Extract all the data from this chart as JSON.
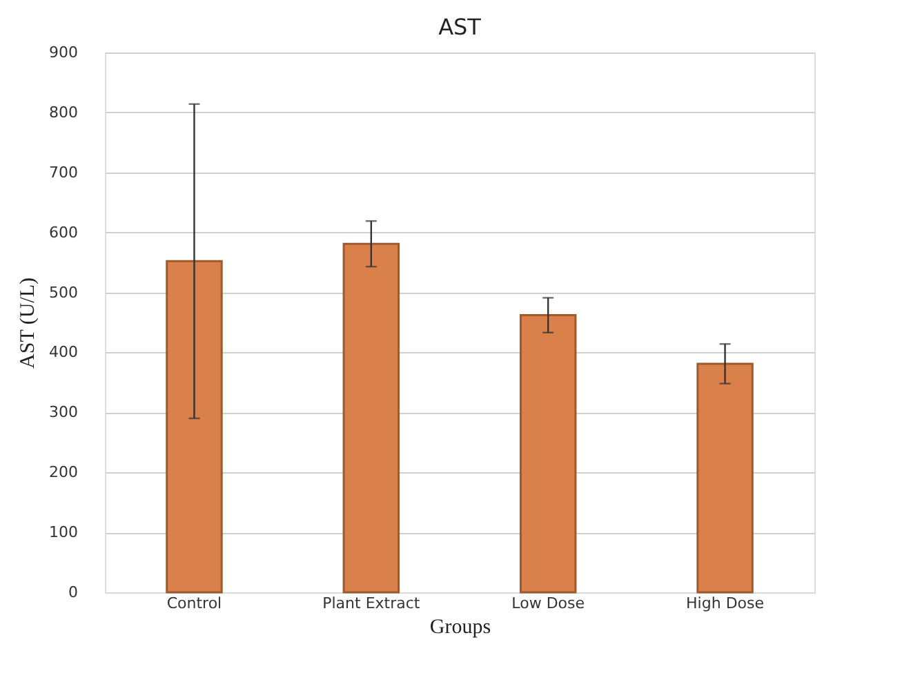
{
  "chart_data": {
    "type": "bar",
    "title": "AST",
    "xlabel": "Groups",
    "ylabel": "AST (U/L)",
    "categories": [
      "Control",
      "Plant Extract",
      "Low Dose",
      "High Dose"
    ],
    "values": [
      552,
      581,
      462,
      381
    ],
    "errors": [
      262,
      38,
      29,
      33
    ],
    "color": "#d9804b",
    "ylim": [
      0,
      900
    ],
    "yticks": [
      0,
      100,
      200,
      300,
      400,
      500,
      600,
      700,
      800,
      900
    ],
    "grid": "y"
  }
}
